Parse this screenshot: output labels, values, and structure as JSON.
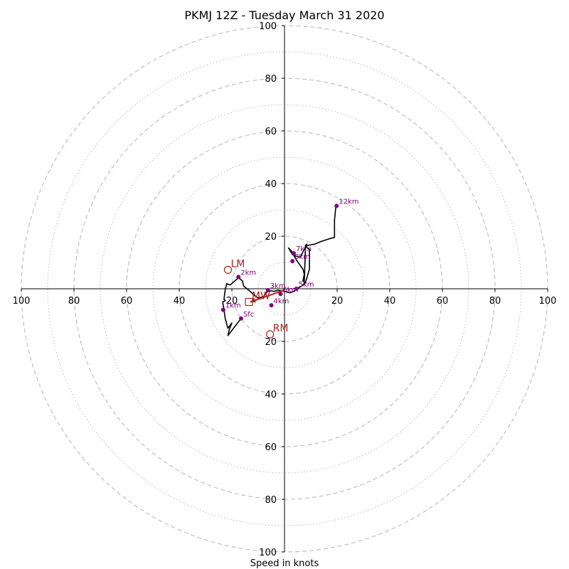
{
  "chart_data": {
    "type": "line",
    "title": "PKMJ 12Z - Tuesday March 31 2020",
    "xlabel": "Speed in knots",
    "units": "knots",
    "range": [
      -100,
      100
    ],
    "ring_major": [
      20,
      40,
      60,
      80,
      100
    ],
    "ring_minor": [
      10,
      30,
      50,
      70,
      90
    ],
    "x_ticks": [
      -100,
      -80,
      -60,
      -40,
      -20,
      20,
      40,
      60,
      80,
      100
    ],
    "x_tick_labels": [
      "100",
      "80",
      "60",
      "40",
      "20",
      "20",
      "40",
      "60",
      "80",
      "100"
    ],
    "y_ticks": [
      100,
      80,
      60,
      40,
      20,
      -20,
      -40,
      -60,
      -80,
      -100
    ],
    "y_tick_labels": [
      "100",
      "80",
      "60",
      "40",
      "20",
      "20",
      "40",
      "60",
      "80",
      "100"
    ],
    "colors": {
      "trace": "#000000",
      "height_points": "#800080",
      "motion": "#b22222",
      "grid": "#bbbbbb",
      "axes": "#000000"
    },
    "trace": [
      [
        -16.5,
        -11.3
      ],
      [
        -21.5,
        -17.8
      ],
      [
        -21.0,
        -15.5
      ],
      [
        -20.0,
        -13.0
      ],
      [
        -21.5,
        -15.0
      ],
      [
        -22.5,
        -11.5
      ],
      [
        -23.0,
        -8.0
      ],
      [
        -23.5,
        -5.0
      ],
      [
        -22.5,
        -4.5
      ],
      [
        -23.0,
        -4.0
      ],
      [
        -22.5,
        0.0
      ],
      [
        -22.0,
        1.5
      ],
      [
        -22.0,
        2.0
      ],
      [
        -21.0,
        1.5
      ],
      [
        -20.5,
        1.5
      ],
      [
        -19.5,
        2.5
      ],
      [
        -17.5,
        4.2
      ],
      [
        -16.0,
        3.0
      ],
      [
        -15.5,
        1.0
      ],
      [
        -13.0,
        -1.0
      ],
      [
        -11.5,
        -2.5
      ],
      [
        -10.0,
        -3.5
      ],
      [
        -8.0,
        -3.0
      ],
      [
        -6.5,
        -1.0
      ],
      [
        -5.0,
        -0.8
      ],
      [
        -4.0,
        -1.0
      ],
      [
        -2.5,
        -0.6
      ],
      [
        0.0,
        -1.0
      ],
      [
        2.0,
        -1.5
      ],
      [
        3.5,
        -1.0
      ],
      [
        4.5,
        0.0
      ],
      [
        6.5,
        1.0
      ],
      [
        8.0,
        2.5
      ],
      [
        9.5,
        7.5
      ],
      [
        9.5,
        15.0
      ],
      [
        8.0,
        16.0
      ],
      [
        6.0,
        12.0
      ],
      [
        4.0,
        12.5
      ],
      [
        3.0,
        13.0
      ],
      [
        1.5,
        15.5
      ],
      [
        2.5,
        14.5
      ],
      [
        4.5,
        11.0
      ],
      [
        7.0,
        7.5
      ],
      [
        7.5,
        5.5
      ],
      [
        7.0,
        3.0
      ],
      [
        7.5,
        2.5
      ],
      [
        8.0,
        16.5
      ],
      [
        8.5,
        17.0
      ],
      [
        8.0,
        16.0
      ],
      [
        9.0,
        16.5
      ],
      [
        11.5,
        17.0
      ],
      [
        14.0,
        18.0
      ],
      [
        17.0,
        19.0
      ],
      [
        19.0,
        19.5
      ],
      [
        19.0,
        24.0
      ],
      [
        19.0,
        26.0
      ],
      [
        19.5,
        31.0
      ]
    ],
    "height_points": [
      {
        "label": "Sfc",
        "u": -16.5,
        "v": -11.3
      },
      {
        "label": "1km",
        "u": -23.3,
        "v": -8.0
      },
      {
        "label": "2km",
        "u": -17.5,
        "v": 4.5
      },
      {
        "label": "3km",
        "u": -6.3,
        "v": -0.5
      },
      {
        "label": "4km",
        "u": -5.0,
        "v": -6.3
      },
      {
        "label": "6km",
        "u": -1.5,
        "v": -2.0
      },
      {
        "label": "5km",
        "u": 4.5,
        "v": 0.0
      },
      {
        "label": "8km",
        "u": 3.0,
        "v": 10.5
      },
      {
        "label": "7km",
        "u": 3.5,
        "v": 13.5
      },
      {
        "label": "12km",
        "u": 19.8,
        "v": 31.5
      }
    ],
    "storm_motion": [
      {
        "label": "LM",
        "marker": "circle",
        "u": -21.5,
        "v": 7.2
      },
      {
        "label": "RM",
        "marker": "circle",
        "u": -5.5,
        "v": -17.3
      },
      {
        "label": "MW",
        "marker": "square",
        "u": -13.5,
        "v": -5.0
      }
    ],
    "mean_wind_arrow": {
      "from": [
        0.0,
        -0.5
      ],
      "to": [
        -13.0,
        -5.0
      ]
    }
  }
}
